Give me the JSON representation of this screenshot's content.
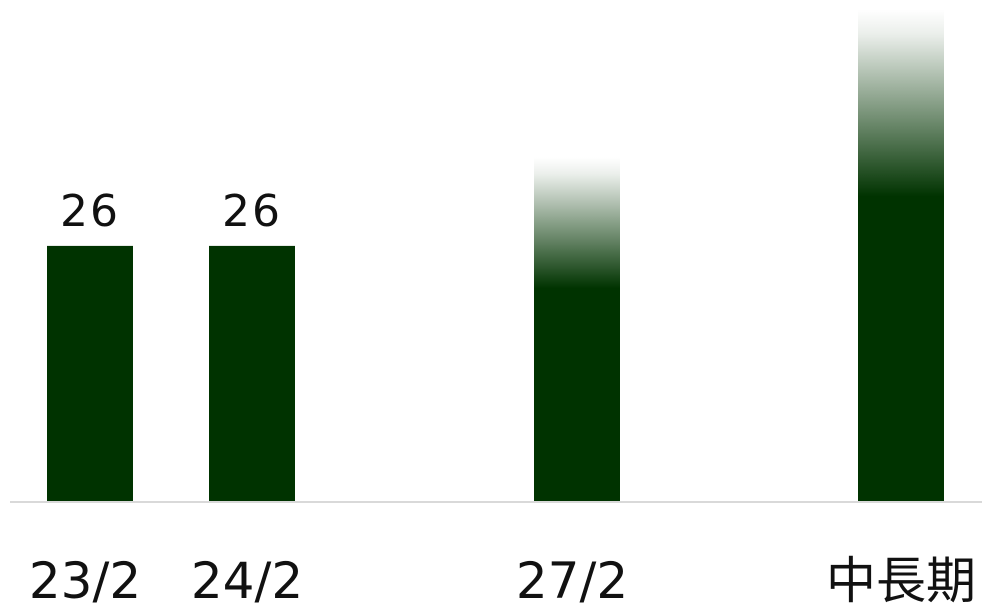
{
  "chart_data": {
    "type": "bar",
    "categories": [
      "23/2",
      "24/2",
      "27/2",
      "中長期"
    ],
    "values": [
      26,
      26,
      35,
      50
    ],
    "data_labels": [
      "26",
      "26",
      "",
      ""
    ],
    "projected": [
      false,
      false,
      true,
      true
    ],
    "title": "",
    "xlabel": "",
    "ylabel": "",
    "ylim": [
      0,
      50
    ],
    "grid": false,
    "legend": "none",
    "bar_color": "#003300",
    "axis_color": "#d9d9d9"
  }
}
